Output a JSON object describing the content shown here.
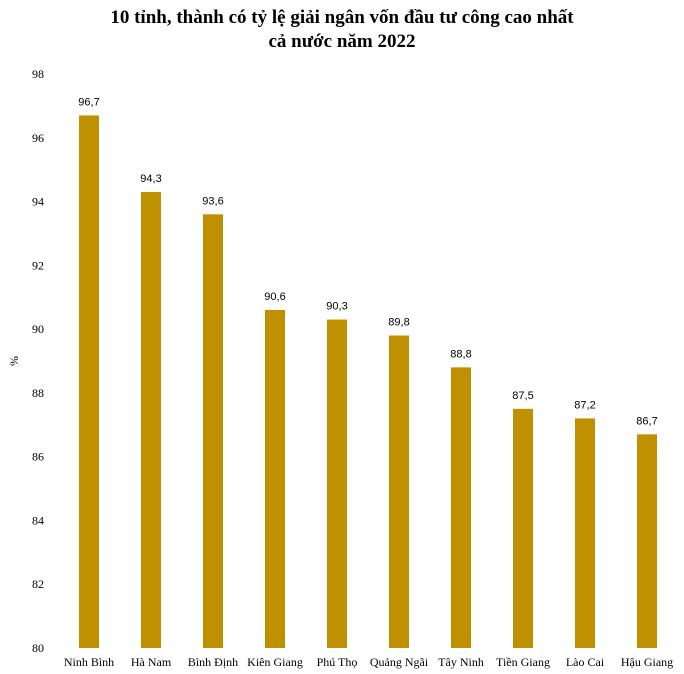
{
  "chart_data": {
    "type": "bar",
    "title_lines": [
      "10 tỉnh, thành có tỷ lệ giải ngân vốn đầu tư công cao nhất",
      "cả nước năm 2022"
    ],
    "xlabel": "",
    "ylabel": "%",
    "categories": [
      "Ninh Bình",
      "Hà Nam",
      "Bình Định",
      "Kiên Giang",
      "Phú Thọ",
      "Quảng Ngãi",
      "Tây Ninh",
      "Tiền Giang",
      "Lào Cai",
      "Hậu Giang"
    ],
    "values": [
      96.7,
      94.3,
      93.6,
      90.6,
      90.3,
      89.8,
      88.8,
      87.5,
      87.2,
      86.7
    ],
    "data_labels": [
      "96,7",
      "94,3",
      "93,6",
      "90,6",
      "90,3",
      "89,8",
      "88,8",
      "87,5",
      "87,2",
      "86,7"
    ],
    "ylim": [
      80,
      98
    ],
    "yticks": [
      80,
      82,
      84,
      86,
      88,
      90,
      92,
      94,
      96,
      98
    ],
    "grid": false,
    "legend": "none",
    "bar_color": "#BF9000"
  }
}
